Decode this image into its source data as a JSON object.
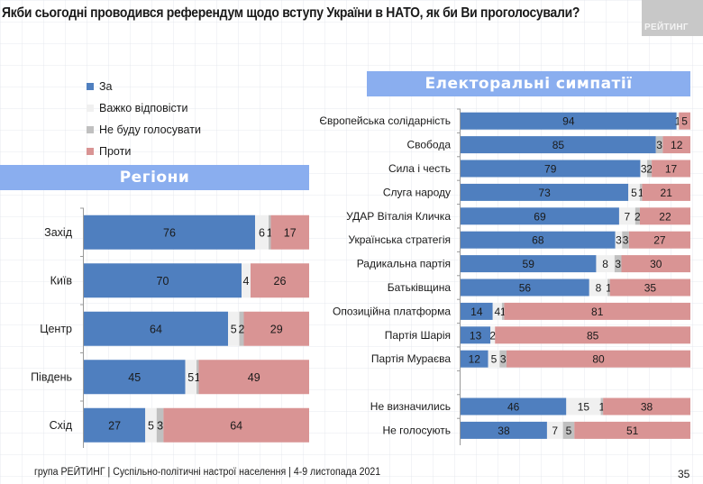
{
  "title": "Якби сьогодні проводився референдум щодо вступу України в НАТО, як би Ви проголосували?",
  "brand_label": "РЕЙТИНГ",
  "colors": {
    "za": "#4f7fbf",
    "hard": "#f0f0f0",
    "wont": "#c0c0c0",
    "proty": "#d99494",
    "banner": "#8aaeef"
  },
  "legend": [
    {
      "label": "За",
      "key": "za"
    },
    {
      "label": "Важко відповісти",
      "key": "hard"
    },
    {
      "label": "Не буду голосувати",
      "key": "wont"
    },
    {
      "label": "Проти",
      "key": "proty"
    }
  ],
  "banners": {
    "regions": "Регіони",
    "electoral": "Електоральні симпатії"
  },
  "footer": "група РЕЙТИНГ | Суспільно-політичні настрої населення  | 4-9 листопада 2021",
  "page_number": "35",
  "chart_data": [
    {
      "type": "bar",
      "orientation": "horizontal",
      "stacked": true,
      "title": "Регіони",
      "series_names": [
        "За",
        "Важко відповісти",
        "Не буду голосувати",
        "Проти"
      ],
      "xlim": [
        0,
        100
      ],
      "categories": [
        "Захід",
        "Київ",
        "Центр",
        "Південь",
        "Схід"
      ],
      "series": [
        {
          "name": "За",
          "values": [
            76,
            70,
            64,
            45,
            27
          ]
        },
        {
          "name": "Важко відповісти",
          "values": [
            6,
            4,
            5,
            5,
            5
          ]
        },
        {
          "name": "Не буду голосувати",
          "values": [
            1,
            0,
            2,
            1,
            3
          ]
        },
        {
          "name": "Проти",
          "values": [
            17,
            26,
            29,
            49,
            64
          ]
        }
      ]
    },
    {
      "type": "bar",
      "orientation": "horizontal",
      "stacked": true,
      "title": "Електоральні симпатії",
      "series_names": [
        "За",
        "Важко відповісти",
        "Не буду голосувати",
        "Проти"
      ],
      "xlim": [
        0,
        100
      ],
      "categories": [
        "Європейська солідарність",
        "Свобода",
        "Сила і честь",
        "Слуга народу",
        "УДАР Віталія Кличка",
        "Українська стратегія",
        "Радикальна партія",
        "Батьківщина",
        "Опозиційна платформа",
        "Партія Шарія",
        "Партія Мураєва",
        "",
        "Не визначились",
        "Не голосують"
      ],
      "series": [
        {
          "name": "За",
          "values": [
            94,
            85,
            79,
            73,
            69,
            68,
            59,
            56,
            14,
            13,
            12,
            null,
            46,
            38
          ]
        },
        {
          "name": "Важко відповісти",
          "values": [
            1,
            0,
            3,
            5,
            7,
            3,
            8,
            8,
            4,
            2,
            5,
            null,
            15,
            7
          ]
        },
        {
          "name": "Не буду голосувати",
          "values": [
            0,
            3,
            2,
            1,
            2,
            3,
            3,
            1,
            1,
            0,
            3,
            null,
            1,
            5
          ]
        },
        {
          "name": "Проти",
          "values": [
            5,
            12,
            17,
            21,
            22,
            27,
            30,
            35,
            81,
            85,
            80,
            null,
            38,
            51
          ]
        }
      ]
    }
  ]
}
